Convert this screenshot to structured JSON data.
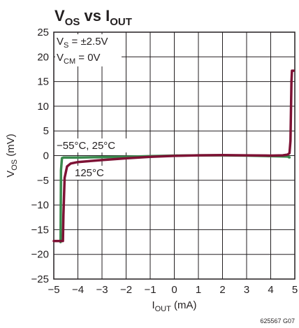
{
  "chart_data": {
    "type": "line",
    "title": {
      "main": "V",
      "sub1": "OS",
      "mid": " vs I",
      "sub2": "OUT"
    },
    "xlabel": {
      "main": "I",
      "sub": "OUT",
      "unit": " (mA)"
    },
    "ylabel": {
      "main": "V",
      "sub": "OS",
      "unit": " (mV)"
    },
    "xlim": [
      -5,
      5
    ],
    "ylim": [
      -25,
      25
    ],
    "xticks": [
      "−5",
      "−4",
      "−3",
      "−2",
      "−1",
      "0",
      "1",
      "2",
      "3",
      "4",
      "5"
    ],
    "yticks": [
      "25",
      "20",
      "15",
      "10",
      "5",
      "0",
      "−5",
      "−10",
      "−15",
      "−20",
      "−25"
    ],
    "grid": true,
    "conditions": [
      {
        "main": "V",
        "sub": "S",
        "rest": " = ±2.5V"
      },
      {
        "main": "V",
        "sub": "CM",
        "rest": " = 0V"
      }
    ],
    "annotations": {
      "series_a": "−55°C, 25°C",
      "series_b": "125°C"
    },
    "figure_id": "625567 G07",
    "colors": {
      "series_a": "#3a8a4e",
      "series_b": "#7e1235",
      "axes": "#231f20"
    },
    "series": [
      {
        "label_ref": "series_a",
        "x": [
          -4.72,
          -4.7,
          -4.66,
          -4.6,
          -4.0,
          -3.0,
          -2.0,
          -1.0,
          0.0,
          1.0,
          2.0,
          3.0,
          4.0,
          4.72,
          4.76,
          4.78
        ],
        "y": [
          -17.5,
          -3.0,
          -0.5,
          -0.4,
          -0.38,
          -0.32,
          -0.25,
          -0.1,
          0.0,
          0.05,
          0.05,
          0.0,
          -0.1,
          -0.2,
          -0.35,
          -0.35
        ]
      },
      {
        "label_ref": "series_b",
        "x": [
          -5.0,
          -4.62,
          -4.6,
          -4.55,
          -4.45,
          -4.3,
          -4.0,
          -3.5,
          -3.0,
          -2.0,
          -1.0,
          0.0,
          1.0,
          2.0,
          3.0,
          4.0,
          4.5,
          4.7,
          4.78,
          4.82,
          4.86,
          4.88,
          4.95
        ],
        "y": [
          -17.3,
          -17.3,
          -12.0,
          -4.5,
          -2.2,
          -1.6,
          -1.3,
          -1.1,
          -0.9,
          -0.55,
          -0.25,
          -0.05,
          0.05,
          0.1,
          0.05,
          0.0,
          0.05,
          0.2,
          0.5,
          3.0,
          15.0,
          17.2,
          17.2
        ]
      }
    ]
  }
}
